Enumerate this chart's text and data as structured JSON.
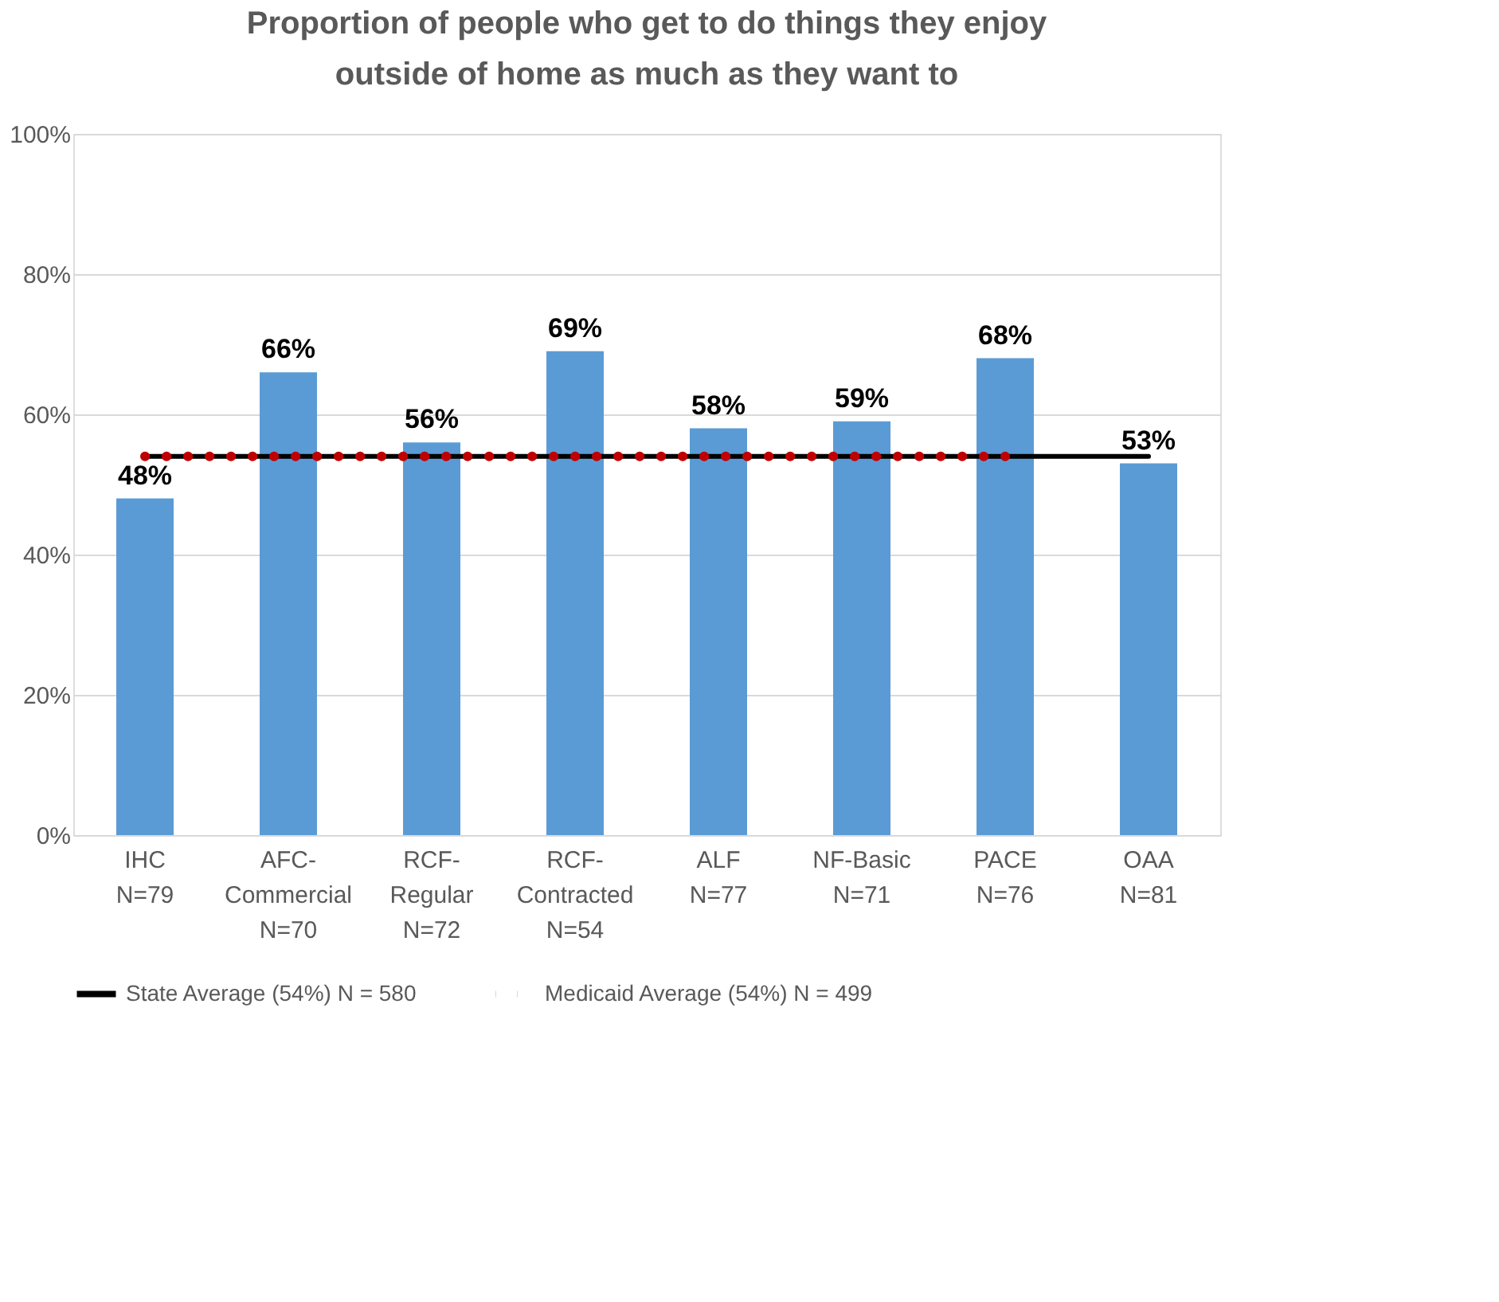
{
  "chart_data": {
    "type": "bar",
    "title": "Proportion of people who get to do things they enjoy outside of home as much as they want to",
    "categories": [
      "IHC\nN=79",
      "AFC-\nCommercial\nN=70",
      "RCF-\nRegular\nN=72",
      "RCF-\nContracted\nN=54",
      "ALF\nN=77",
      "NF-Basic\nN=71",
      "PACE\nN=76",
      "OAA\nN=81"
    ],
    "series": [
      {
        "color": "#5b9bd5",
        "values": [
          48,
          66,
          56,
          69,
          58,
          59,
          68,
          53
        ],
        "value_labels": [
          "48%",
          "66%",
          "56%",
          "69%",
          "58%",
          "59%",
          "68%",
          "53%"
        ]
      },
      {
        "type": "line",
        "name": "State Average (54%) N = 580",
        "color": "#000000",
        "line_style": "solid",
        "values": [
          54,
          54,
          54,
          54,
          54,
          54,
          54,
          54
        ]
      },
      {
        "type": "line",
        "name": "Medicaid Average (54%) N = 499",
        "color": "#c00000",
        "line_style": "dotted",
        "values": [
          54,
          54,
          54,
          54,
          54,
          54,
          54,
          null
        ]
      }
    ],
    "ylim": [
      0,
      100
    ],
    "yticks": [
      {
        "value": 0,
        "label": "0%"
      },
      {
        "value": 20,
        "label": "20%"
      },
      {
        "value": 40,
        "label": "40%"
      },
      {
        "value": 60,
        "label": "60%"
      },
      {
        "value": 80,
        "label": "80%"
      },
      {
        "value": 100,
        "label": "100%"
      }
    ],
    "grid": "y",
    "legend": "bottom"
  }
}
